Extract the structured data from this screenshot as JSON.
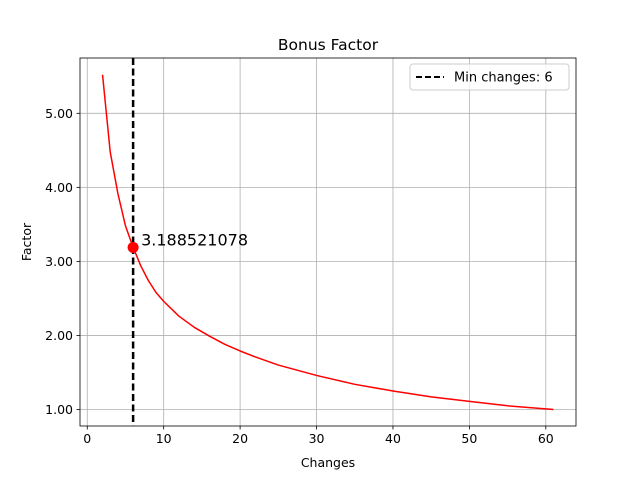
{
  "chart_data": {
    "type": "line",
    "title": "Bonus Factor",
    "xlabel": "Changes",
    "ylabel": "Factor",
    "xlim": [
      -0.95,
      63.95
    ],
    "ylim": [
      0.777,
      5.747
    ],
    "x_ticks": [
      0,
      10,
      20,
      30,
      40,
      50,
      60
    ],
    "x_tick_labels": [
      "0",
      "10",
      "20",
      "30",
      "40",
      "50",
      "60"
    ],
    "y_ticks": [
      1,
      2,
      3,
      4,
      5
    ],
    "y_tick_labels": [
      "1.00",
      "2.00",
      "3.00",
      "4.00",
      "5.00"
    ],
    "grid": true,
    "legend_position": "top-right",
    "series": [
      {
        "color": "#ff0000",
        "x": [
          2,
          3,
          4,
          5,
          6,
          7,
          8,
          9,
          10,
          12,
          14,
          16,
          18,
          20,
          22,
          25,
          30,
          35,
          40,
          45,
          50,
          55,
          61
        ],
        "y": [
          5.52,
          4.48,
          3.92,
          3.48,
          3.19,
          2.94,
          2.74,
          2.58,
          2.46,
          2.26,
          2.11,
          1.99,
          1.88,
          1.79,
          1.71,
          1.6,
          1.46,
          1.34,
          1.25,
          1.17,
          1.11,
          1.05,
          1.0
        ]
      }
    ],
    "vline": {
      "x": 6,
      "color": "#000000",
      "style": "dashed",
      "legend_label": "Min changes: 6"
    },
    "highlight_point": {
      "x": 6,
      "y": 3.188521078,
      "color": "#ff0000",
      "label": "3.188521078"
    }
  }
}
